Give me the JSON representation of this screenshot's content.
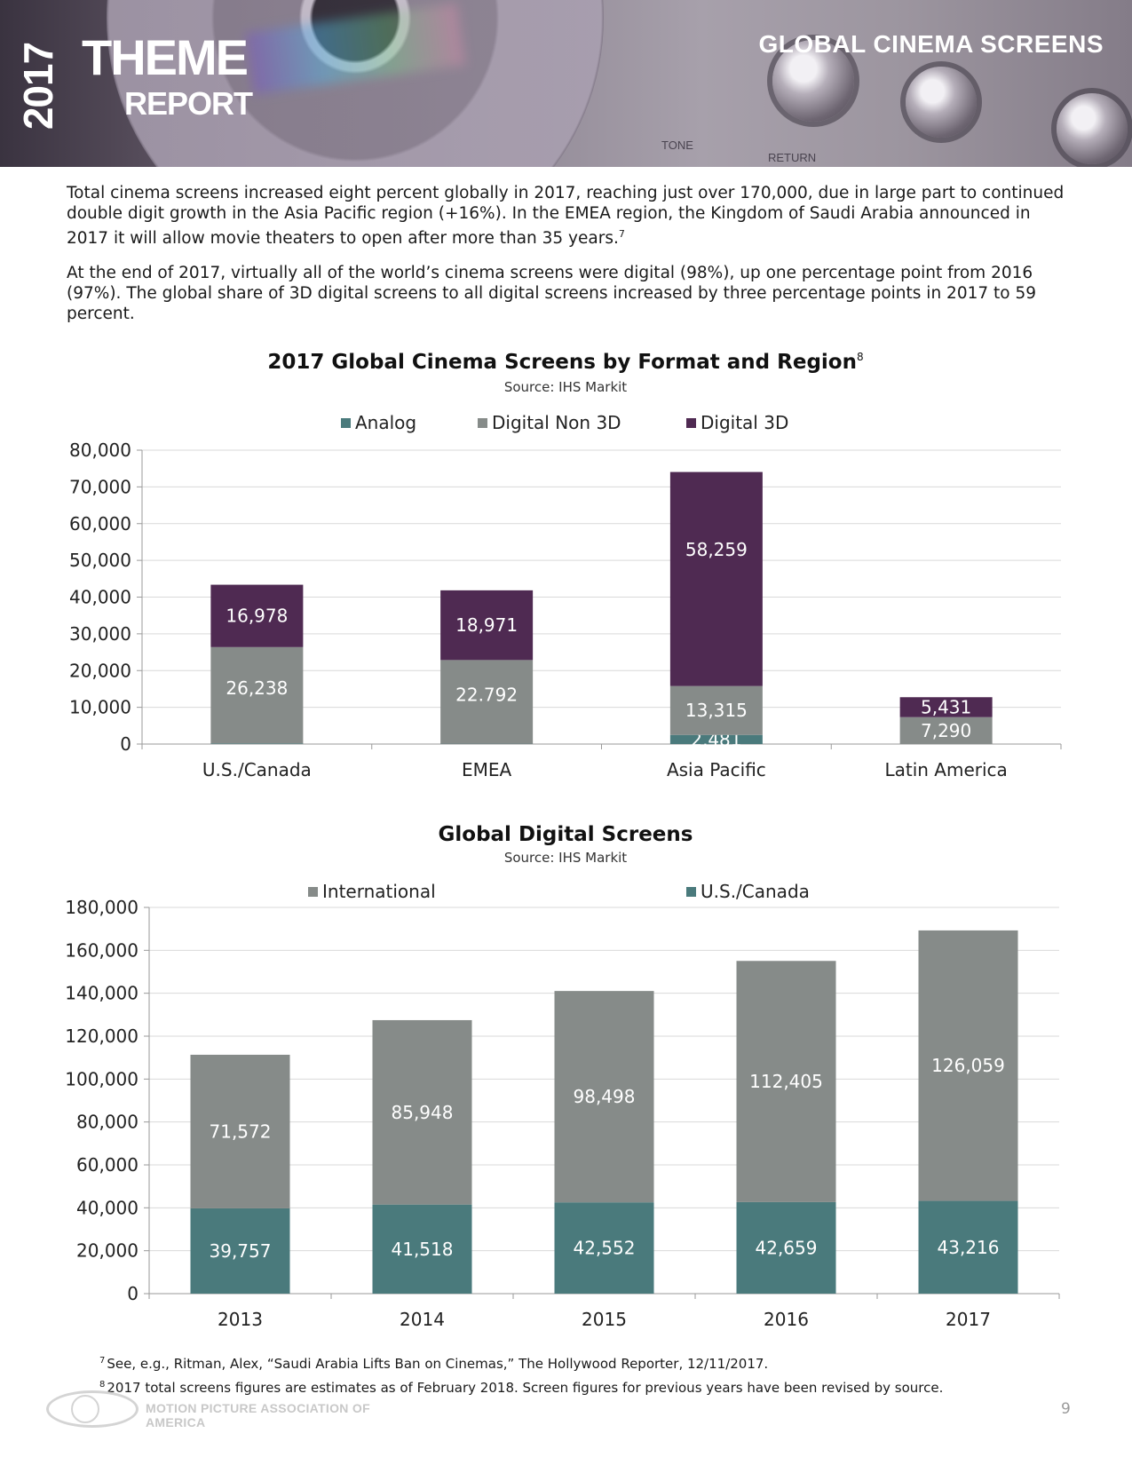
{
  "header": {
    "year": "2017",
    "title_line1": "THEME",
    "title_line2": "REPORT",
    "section_title": "GLOBAL CINEMA SCREENS",
    "panel_label_tone": "TONE",
    "panel_label_return": "RETURN"
  },
  "paragraphs": {
    "p1": "Total cinema screens increased eight percent globally in 2017, reaching just over 170,000, due in large part to continued double digit growth in the Asia Pacific region (+16%). In the EMEA region, the Kingdom of Saudi Arabia announced in 2017 it will allow movie theaters to open after more than 35 years.",
    "p1_note": "7",
    "p2": "At the end of 2017, virtually all of the world’s cinema screens were digital (98%), up one percentage point from 2016 (97%). The global share of 3D digital screens to all digital screens increased by three percentage points in 2017 to 59 percent."
  },
  "chart_data": [
    {
      "type": "bar",
      "stacked": true,
      "title": "2017 Global Cinema Screens by Format and Region",
      "title_note": "8",
      "subtitle": "Source: IHS Markit",
      "categories": [
        "U.S./Canada",
        "EMEA",
        "Asia Pacific",
        "Latin America"
      ],
      "series": [
        {
          "name": "Analog",
          "color": "#4a7a7c",
          "values": [
            150,
            80,
            2481,
            30
          ],
          "labels": [
            "",
            "",
            "2,481",
            ""
          ]
        },
        {
          "name": "Digital Non 3D",
          "color": "#868b89",
          "values": [
            26238,
            22792,
            13315,
            7290
          ],
          "labels": [
            "26,238",
            "22.792",
            "13,315",
            "7,290"
          ]
        },
        {
          "name": "Digital 3D",
          "color": "#4f2a52",
          "values": [
            16978,
            18971,
            58259,
            5431
          ],
          "labels": [
            "16,978",
            "18,971",
            "58,259",
            "5,431"
          ]
        }
      ],
      "ylim": [
        0,
        80000
      ],
      "yticks": [
        "0",
        "10,000",
        "20,000",
        "30,000",
        "40,000",
        "50,000",
        "60,000",
        "70,000",
        "80,000"
      ],
      "grid": true,
      "legend_position": "top"
    },
    {
      "type": "bar",
      "stacked": true,
      "title": "Global Digital Screens",
      "subtitle": "Source: IHS Markit",
      "categories": [
        "2013",
        "2014",
        "2015",
        "2016",
        "2017"
      ],
      "series": [
        {
          "name": "U.S./Canada",
          "color": "#4a7a7c",
          "values": [
            39757,
            41518,
            42552,
            42659,
            43216
          ],
          "labels": [
            "39,757",
            "41,518",
            "42,552",
            "42,659",
            "43,216"
          ]
        },
        {
          "name": "International",
          "color": "#868b89",
          "values": [
            71572,
            85948,
            98498,
            112405,
            126059
          ],
          "labels": [
            "71,572",
            "85,948",
            "98,498",
            "112,405",
            "126,059"
          ]
        }
      ],
      "legend_order": [
        "International",
        "U.S./Canada"
      ],
      "ylim": [
        0,
        180000
      ],
      "yticks": [
        "0",
        "20,000",
        "40,000",
        "60,000",
        "80,000",
        "100,000",
        "120,000",
        "140,000",
        "160,000",
        "180,000"
      ],
      "grid": true,
      "legend_position": "top"
    }
  ],
  "footnotes": {
    "n7_mark": "7",
    "n7": "See, e.g., Ritman, Alex, “Saudi Arabia Lifts Ban on Cinemas,” The Hollywood Reporter, 12/11/2017.",
    "n8_mark": "8",
    "n8": "2017 total screens figures are estimates as of February 2018. Screen figures for previous years have been revised by source."
  },
  "footer": {
    "org": "MOTION PICTURE ASSOCIATION OF AMERICA",
    "page_number": "9"
  }
}
